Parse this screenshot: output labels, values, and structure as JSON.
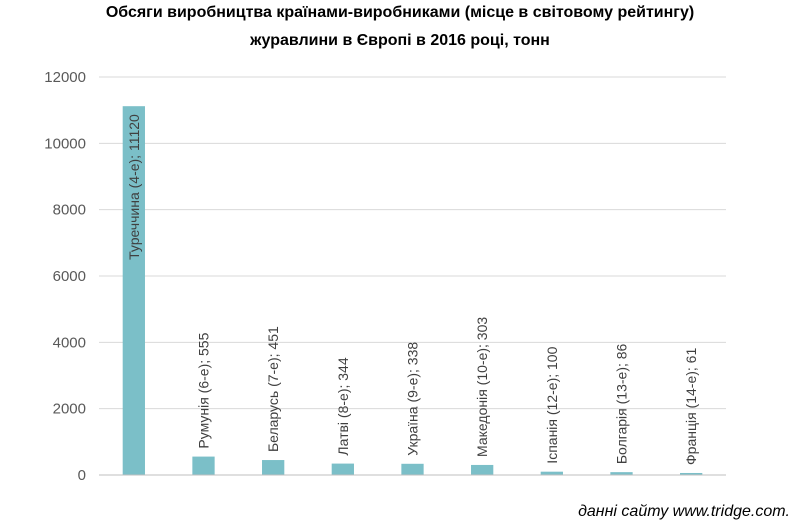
{
  "title_lines": [
    "Обсяги виробництва країнами-виробниками (місце в світовому рейтингу)",
    "журавлини в Європі в 2016 році, тонн"
  ],
  "source_note": "данні сайту www.tridge.com.",
  "colors": {
    "bar": "#7bbfc8",
    "grid": "#d9d9d9",
    "axis": "#bfbfbf",
    "tick_text": "#595959",
    "label_text": "#404040"
  },
  "chart_data": {
    "type": "bar",
    "categories": [
      "Туреччина (4-е)",
      "Румунія (6-е)",
      "Беларусь (7-е)",
      "Латві (8-е)",
      "Україна (9-е)",
      "Македонія (10-е)",
      "Іспанія (12-е)",
      "Болгарія (13-е)",
      "Франція (14-е)"
    ],
    "values": [
      11120,
      555,
      451,
      344,
      338,
      303,
      100,
      86,
      61
    ],
    "data_labels": [
      "Туреччина (4-е); 11120",
      "Румунія (6-е); 555",
      "Беларусь (7-е); 451",
      "Латві (8-е); 344",
      "Україна (9-е); 338",
      "Македонія (10-е); 303",
      "Іспанія (12-е); 100",
      "Болгарія (13-е); 86",
      "Франція (14-е); 61"
    ],
    "ylim": [
      0,
      12000
    ],
    "yticks": [
      0,
      2000,
      4000,
      6000,
      8000,
      10000,
      12000
    ],
    "ytick_labels": [
      "0",
      "2000",
      "4000",
      "6000",
      "8000",
      "10000",
      "12000"
    ],
    "grid": true,
    "legend": "none"
  }
}
